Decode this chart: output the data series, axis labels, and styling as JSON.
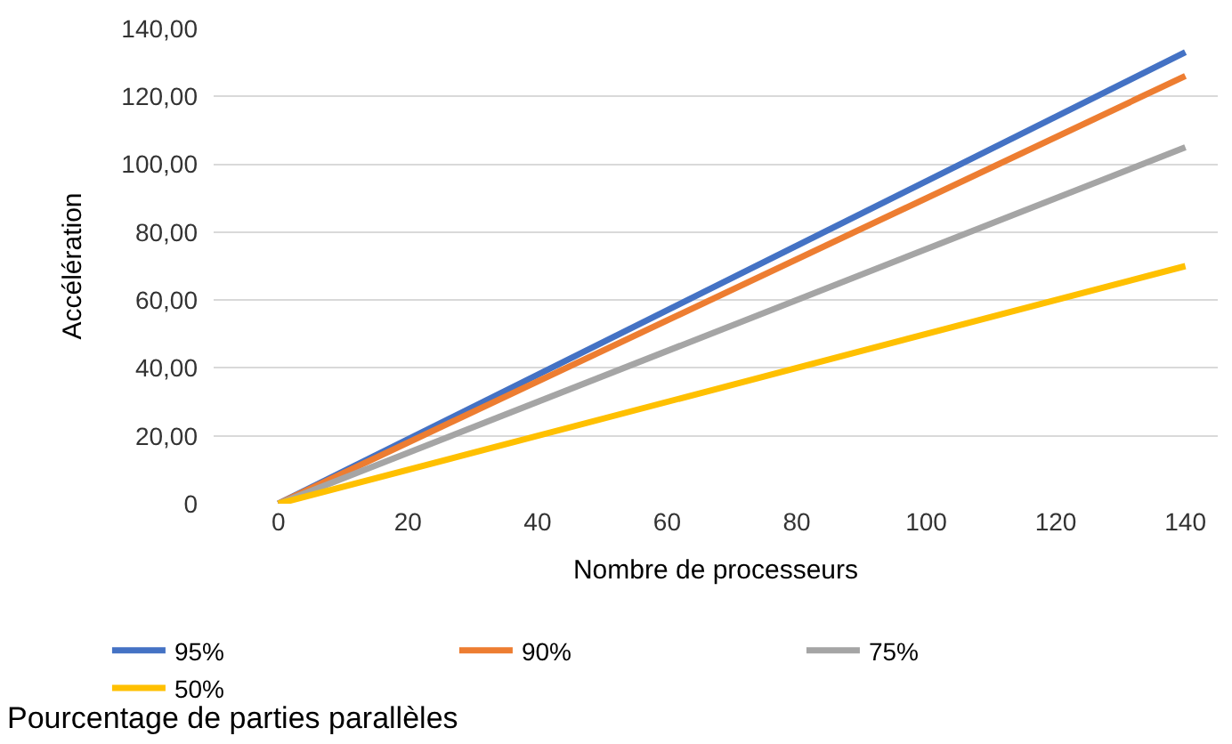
{
  "chart_data": {
    "type": "line",
    "xlabel": "Nombre de processeurs",
    "ylabel": "Accélération",
    "legend_title": "Pourcentage de parties parallèles",
    "x": [
      0,
      140
    ],
    "series": [
      {
        "name": "95%",
        "color": "#4472c4",
        "values": [
          0,
          133
        ]
      },
      {
        "name": "90%",
        "color": "#ed7d31",
        "values": [
          0,
          126
        ]
      },
      {
        "name": "75%",
        "color": "#a5a5a5",
        "values": [
          0,
          105
        ]
      },
      {
        "name": "50%",
        "color": "#ffc000",
        "values": [
          0,
          70
        ]
      }
    ],
    "xlim": [
      -10,
      145
    ],
    "xticks": [
      0,
      20,
      40,
      60,
      80,
      100,
      120,
      140
    ],
    "ylim": [
      0,
      140
    ],
    "yticks": [
      0,
      {
        "value": 20,
        "label": "20,00"
      },
      {
        "value": 40,
        "label": "40,00"
      },
      {
        "value": 60,
        "label": "60,00"
      },
      {
        "value": 80,
        "label": "80,00"
      },
      {
        "value": 100,
        "label": "100,00"
      },
      {
        "value": 120,
        "label": "120,00"
      },
      {
        "value": 140,
        "label": "140,00"
      }
    ],
    "grid": "y",
    "legend": "bottom",
    "marker": "none",
    "line_style": "solid"
  }
}
